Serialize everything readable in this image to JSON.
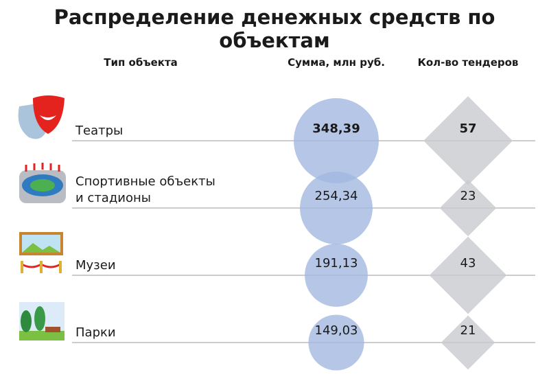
{
  "chart_data": {
    "type": "bubble-table",
    "title": "Распределение денежных средств по объектам",
    "columns": [
      "Тип объекта",
      "Сумма, млн руб.",
      "Кол-во тендеров"
    ],
    "categories": [
      "Театры",
      "Спортивные объекты и стадионы",
      "Музеи",
      "Парки"
    ],
    "series": [
      {
        "name": "Сумма, млн руб.",
        "color": "#a3b8e0",
        "values": [
          348.39,
          254.34,
          191.13,
          149.03
        ],
        "value_labels": [
          "348,39",
          "254,34",
          "191,13",
          "149,03"
        ]
      },
      {
        "name": "Кол-во тендеров",
        "color": "#c9cacf",
        "values": [
          57,
          23,
          43,
          21
        ]
      }
    ]
  }
}
